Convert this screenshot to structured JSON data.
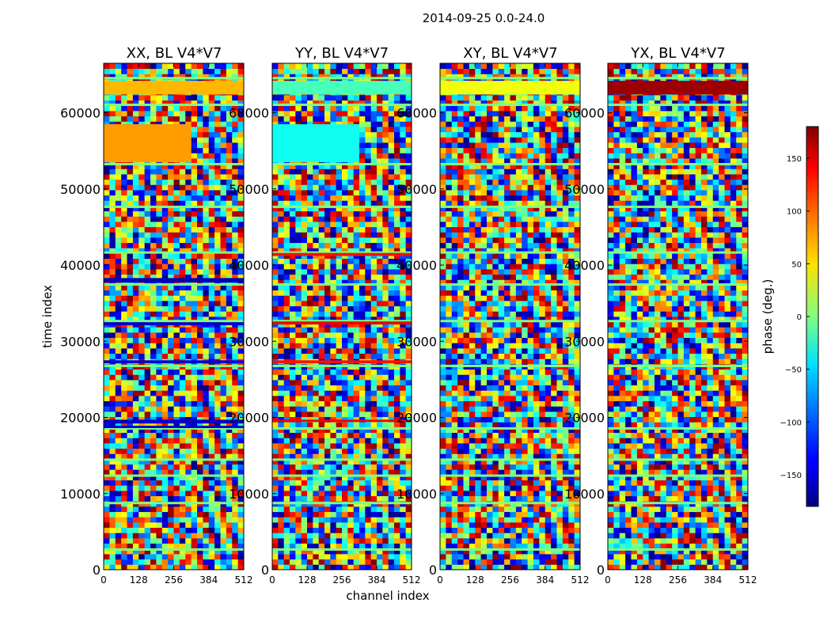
{
  "chart_data": {
    "type": "heatmap",
    "title": "2014-09-25 0.0-24.0",
    "xlabel": "channel index",
    "ylabel": "time index",
    "colorbar_label": "phase (deg.)",
    "colormap": "jet",
    "xlim": [
      0,
      512
    ],
    "ylim": [
      0,
      66500
    ],
    "clim": [
      -180,
      180
    ],
    "x_ticks": [
      0,
      128,
      256,
      384,
      512
    ],
    "x_tick_labels": [
      "0",
      "128",
      "256",
      "384",
      "512"
    ],
    "y_ticks": [
      0,
      10000,
      20000,
      30000,
      40000,
      50000,
      60000
    ],
    "y_tick_labels": [
      "0",
      "10000",
      "20000",
      "30000",
      "40000",
      "50000",
      "60000"
    ],
    "colorbar_ticks": [
      150,
      100,
      50,
      0,
      -50,
      -100,
      -150
    ],
    "colorbar_tick_labels": [
      "150",
      "100",
      "50",
      "0",
      "−50",
      "−100",
      "−150"
    ],
    "panels": [
      {
        "name": "XX",
        "title": "XX, BL V4*V7"
      },
      {
        "name": "YY",
        "title": "YY, BL V4*V7"
      },
      {
        "name": "XY",
        "title": "XY, BL V4*V7"
      },
      {
        "name": "YX",
        "title": "YX, BL V4*V7"
      }
    ],
    "gap_rows_time_index": [
      2600,
      8700,
      12300,
      14400,
      18500,
      26700,
      32600,
      37400,
      41600,
      47600,
      53200,
      61000,
      64500
    ],
    "strong_bands": [
      {
        "panel": "XX",
        "t0": 62400,
        "t1": 64200,
        "phase": 70
      },
      {
        "panel": "XX",
        "t0": 53500,
        "t1": 58500,
        "phase": 80,
        "x1": 320
      },
      {
        "panel": "XX",
        "t0": 37700,
        "t1": 38300,
        "phase": -160
      },
      {
        "panel": "XX",
        "t0": 32100,
        "t1": 32500,
        "phase": -150
      },
      {
        "panel": "XX",
        "t0": 27100,
        "t1": 27500,
        "phase": -150
      },
      {
        "panel": "XX",
        "t0": 19200,
        "t1": 19700,
        "phase": -155
      },
      {
        "panel": "XX",
        "t0": 18600,
        "t1": 18900,
        "phase": -150
      },
      {
        "panel": "YY",
        "t0": 62400,
        "t1": 64200,
        "phase": -20
      },
      {
        "panel": "YY",
        "t0": 53500,
        "t1": 58500,
        "phase": -40,
        "x1": 320
      },
      {
        "panel": "YY",
        "t0": 41200,
        "t1": 41600,
        "phase": 130
      },
      {
        "panel": "YY",
        "t0": 32200,
        "t1": 32600,
        "phase": 140
      },
      {
        "panel": "YY",
        "t0": 27100,
        "t1": 27500,
        "phase": 130
      },
      {
        "panel": "YY",
        "t0": 19400,
        "t1": 19700,
        "phase": 140
      },
      {
        "panel": "XY",
        "t0": 62400,
        "t1": 64200,
        "phase": 40
      },
      {
        "panel": "YX",
        "t0": 62400,
        "t1": 64200,
        "phase": 170
      }
    ]
  }
}
